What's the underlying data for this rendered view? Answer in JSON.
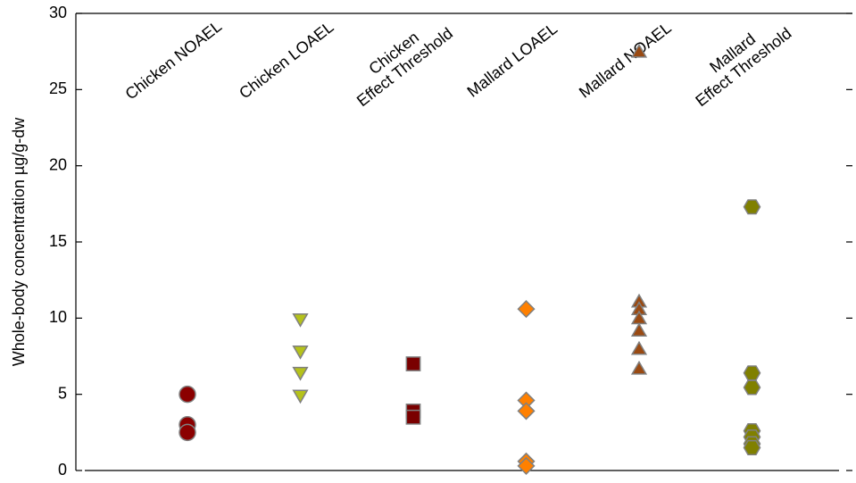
{
  "chart_data": {
    "type": "strip",
    "y_label": "Whole-body concentration µg/g-dw",
    "ylim": [
      0,
      30
    ],
    "yticks": [
      0,
      5,
      10,
      15,
      20,
      25,
      30
    ],
    "grid": false,
    "series": [
      {
        "name": "Chicken NOAEL",
        "color": "#8b0000",
        "marker": "circle",
        "values": [
          5.0,
          3.0,
          2.5
        ]
      },
      {
        "name": "Chicken LOAEL",
        "color": "#b5c21a",
        "marker": "triangle-down",
        "values": [
          10.0,
          7.9,
          6.5,
          5.0
        ]
      },
      {
        "name": "Chicken\nEffect Threshold",
        "color": "#7a0000",
        "marker": "square",
        "values": [
          7.0,
          3.9,
          3.5
        ]
      },
      {
        "name": "Mallard LOAEL",
        "color": "#ff8000",
        "marker": "diamond",
        "values": [
          10.6,
          4.6,
          3.9,
          0.6,
          0.3
        ]
      },
      {
        "name": "Mallard NOAEL",
        "color": "#9a4a12",
        "marker": "triangle-up",
        "values": [
          27.4,
          11.0,
          10.5,
          9.9,
          9.1,
          7.9,
          6.6
        ]
      },
      {
        "name": "Mallard\nEffect Threshold",
        "color": "#808000",
        "marker": "hexagon",
        "values": [
          17.3,
          6.4,
          5.45,
          2.6,
          2.2,
          1.75,
          1.5
        ]
      }
    ]
  }
}
